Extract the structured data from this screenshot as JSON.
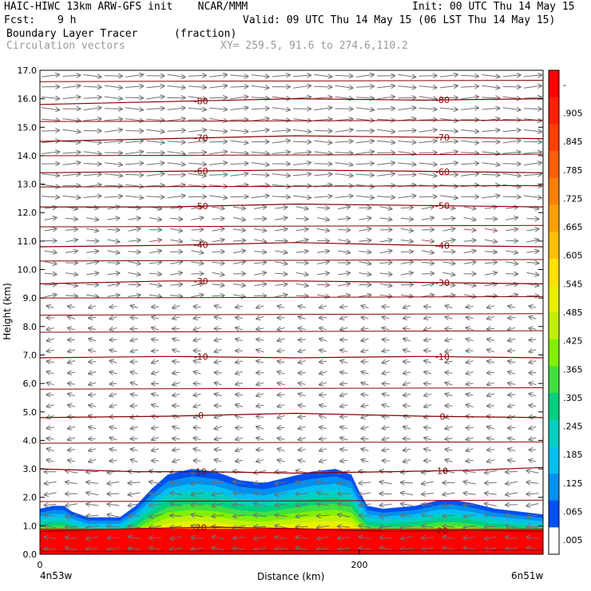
{
  "header": {
    "model_line": "HAIC-HIWC 13km ARW-GFS init    NCAR/MMM",
    "init_line": "Init: 00 UTC Thu 14 May 15",
    "fcst_label": "Fcst:",
    "fcst_value": "9 h",
    "valid_line": "Valid: 09 UTC Thu 14 May 15 (06 LST Thu 14 May 15)",
    "field_name": "Boundary Layer Tracer",
    "field_units": "(fraction)",
    "overlay_name": "Circulation vectors",
    "xy_line": "XY= 259.5, 91.6 to 274.6,110.2"
  },
  "chart_data": {
    "type": "heatmap",
    "title": "Boundary Layer Tracer",
    "units": "(fraction)",
    "xlabel": "Distance (km)",
    "ylabel": "Height (km)",
    "xlim": [
      0,
      315
    ],
    "ylim": [
      0,
      17
    ],
    "x_ticks": [
      0,
      200
    ],
    "x_tick_labels": [
      "0",
      "200"
    ],
    "y_ticks": [
      0,
      1,
      2,
      3,
      4,
      5,
      6,
      7,
      8,
      9,
      10,
      11,
      12,
      13,
      14,
      15,
      16,
      17
    ],
    "y_tick_labels": [
      "0.0",
      "1.0",
      "2.0",
      "3.0",
      "4.0",
      "5.0",
      "6.0",
      "7.0",
      "8.0",
      "9.0",
      "10.0",
      "11.0",
      "12.0",
      "13.0",
      "14.0",
      "15.0",
      "16.0",
      "17.0"
    ],
    "endpoint_labels": {
      "left": "4n53w",
      "right": "6n51w"
    },
    "colorbar": {
      "labels": [
        "-",
        ".905",
        ".845",
        ".785",
        ".725",
        ".665",
        ".605",
        ".545",
        ".485",
        ".425",
        ".365",
        ".305",
        ".245",
        ".185",
        ".125",
        ".065",
        ".005"
      ],
      "colors": [
        "#ff0000",
        "#ff2000",
        "#ff4000",
        "#ff6000",
        "#ff8000",
        "#ffa000",
        "#ffc000",
        "#ffe000",
        "#e8f000",
        "#c0f000",
        "#80f000",
        "#40e040",
        "#00d080",
        "#00d0c0",
        "#00c0f0",
        "#0090f0",
        "#0050f0",
        "#ffffff"
      ]
    },
    "tracer_top_km": [
      [
        0,
        1.6
      ],
      [
        8,
        1.7
      ],
      [
        15,
        1.7
      ],
      [
        20,
        1.5
      ],
      [
        30,
        1.3
      ],
      [
        50,
        1.3
      ],
      [
        60,
        1.7
      ],
      [
        70,
        2.3
      ],
      [
        80,
        2.8
      ],
      [
        95,
        3.0
      ],
      [
        110,
        2.9
      ],
      [
        125,
        2.6
      ],
      [
        140,
        2.5
      ],
      [
        155,
        2.7
      ],
      [
        170,
        2.9
      ],
      [
        185,
        3.0
      ],
      [
        195,
        2.8
      ],
      [
        200,
        2.2
      ],
      [
        205,
        1.7
      ],
      [
        215,
        1.6
      ],
      [
        235,
        1.7
      ],
      [
        250,
        1.9
      ],
      [
        260,
        1.9
      ],
      [
        270,
        1.8
      ],
      [
        285,
        1.6
      ],
      [
        300,
        1.5
      ],
      [
        315,
        1.4
      ]
    ],
    "temperature_contours": [
      {
        "label": "20",
        "value": 20,
        "points": [
          [
            0,
            0.8
          ],
          [
            60,
            0.9
          ],
          [
            110,
            0.95
          ],
          [
            160,
            0.9
          ],
          [
            220,
            0.8
          ],
          [
            270,
            0.85
          ],
          [
            315,
            0.8
          ]
        ]
      },
      {
        "label": "10",
        "value": 10,
        "points": [
          [
            0,
            3.0
          ],
          [
            60,
            2.9
          ],
          [
            100,
            2.9
          ],
          [
            160,
            2.85
          ],
          [
            220,
            2.9
          ],
          [
            270,
            2.95
          ],
          [
            315,
            3.05
          ]
        ]
      },
      {
        "label": "0",
        "value": 0,
        "points": [
          [
            0,
            4.8
          ],
          [
            80,
            4.85
          ],
          [
            160,
            4.95
          ],
          [
            240,
            4.85
          ],
          [
            315,
            4.8
          ]
        ]
      },
      {
        "label": "-10",
        "value": -10,
        "points": [
          [
            0,
            6.9
          ],
          [
            80,
            6.95
          ],
          [
            160,
            6.9
          ],
          [
            240,
            6.95
          ],
          [
            315,
            6.9
          ]
        ]
      },
      {
        "label": "-30",
        "value": -30,
        "points": [
          [
            0,
            9.5
          ],
          [
            80,
            9.6
          ],
          [
            160,
            9.6
          ],
          [
            240,
            9.55
          ],
          [
            315,
            9.5
          ]
        ]
      },
      {
        "label": "-40",
        "value": -40,
        "points": [
          [
            0,
            10.8
          ],
          [
            80,
            10.85
          ],
          [
            160,
            10.95
          ],
          [
            240,
            10.85
          ],
          [
            315,
            10.8
          ]
        ]
      },
      {
        "label": "-50",
        "value": -50,
        "points": [
          [
            0,
            12.2
          ],
          [
            80,
            12.2
          ],
          [
            160,
            12.3
          ],
          [
            240,
            12.25
          ],
          [
            315,
            12.2
          ]
        ]
      },
      {
        "label": "-60",
        "value": -60,
        "points": [
          [
            0,
            13.4
          ],
          [
            80,
            13.45
          ],
          [
            160,
            13.5
          ],
          [
            240,
            13.45
          ],
          [
            315,
            13.4
          ]
        ]
      },
      {
        "label": "-70",
        "value": -70,
        "points": [
          [
            0,
            14.5
          ],
          [
            80,
            14.6
          ],
          [
            160,
            14.7
          ],
          [
            240,
            14.65
          ],
          [
            315,
            14.6
          ]
        ]
      },
      {
        "label": "-80",
        "value": -80,
        "points": [
          [
            0,
            15.8
          ],
          [
            80,
            15.9
          ],
          [
            160,
            16.0
          ],
          [
            240,
            15.95
          ],
          [
            315,
            16.0
          ]
        ]
      }
    ],
    "unlabeled_contours_km": [
      0.1,
      1.85,
      3.9,
      5.8,
      7.8,
      8.4,
      9.0,
      10.3,
      11.5,
      12.9,
      14.0,
      15.2,
      16.6
    ],
    "wind_regimes": [
      {
        "z0": 12.5,
        "z1": 17.0,
        "direction": "east",
        "strength": "strong"
      },
      {
        "z0": 9.0,
        "z1": 12.5,
        "direction": "east",
        "strength": "moderate"
      },
      {
        "z0": 5.0,
        "z1": 9.0,
        "direction": "west",
        "strength": "weak"
      },
      {
        "z0": 3.0,
        "z1": 5.0,
        "direction": "west",
        "strength": "weak"
      },
      {
        "z0": 0.0,
        "z1": 3.0,
        "direction": "west",
        "strength": "moderate"
      }
    ],
    "grid": false,
    "legend_placement": "right colorbar"
  }
}
